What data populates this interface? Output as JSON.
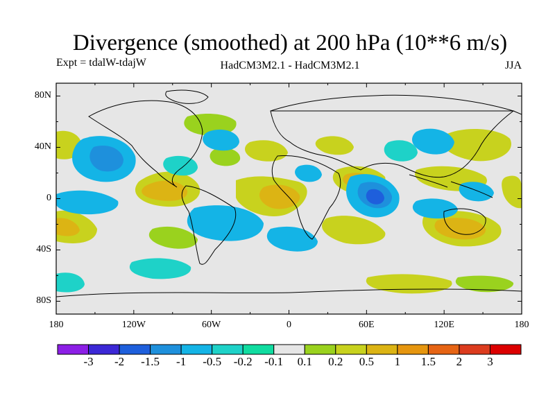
{
  "title": "Divergence (smoothed) at 200 hPa (10**6 m/s)",
  "experiment": "Expt = tdalW-tdajW",
  "models": "HadCM3M2.1 - HadCM3M2.1",
  "season": "JJA",
  "y_axis": {
    "labels": [
      "80N",
      "40N",
      "0",
      "40S",
      "80S"
    ],
    "values": [
      80,
      40,
      0,
      -40,
      -80
    ]
  },
  "x_axis": {
    "labels": [
      "180",
      "120W",
      "60W",
      "0",
      "60E",
      "120E",
      "180"
    ],
    "values": [
      -180,
      -120,
      -60,
      0,
      60,
      120,
      180
    ]
  },
  "colorbar": {
    "colors": [
      "#8c1fe6",
      "#3c28d6",
      "#1e5fdc",
      "#1e90dc",
      "#14b4e6",
      "#1ed2c8",
      "#10dca0",
      "#e6e6e6",
      "#9ad21e",
      "#c8d21e",
      "#dcb414",
      "#e6960f",
      "#e66414",
      "#dc3c1e",
      "#dc0000"
    ],
    "labels": [
      "-3",
      "-2",
      "-1.5",
      "-1",
      "-0.5",
      "-0.2",
      "-0.1",
      "0.1",
      "0.2",
      "0.5",
      "1",
      "1.5",
      "2",
      "3"
    ]
  },
  "map_features": {
    "positive_centers": [
      {
        "lon": -110,
        "lat": 10,
        "level": "1"
      },
      {
        "lon": 0,
        "lat": 0,
        "level": "1"
      },
      {
        "lon": 45,
        "lat": 10,
        "level": "1"
      },
      {
        "lon": 135,
        "lat": -25,
        "level": "1"
      },
      {
        "lon": -175,
        "lat": -22,
        "level": "1"
      },
      {
        "lon": 50,
        "lat": -30,
        "level": "0.5"
      },
      {
        "lon": 140,
        "lat": 35,
        "level": "0.5"
      }
    ],
    "negative_centers": [
      {
        "lon": 70,
        "lat": 0,
        "level": "-2"
      },
      {
        "lon": -145,
        "lat": 30,
        "level": "-0.5"
      },
      {
        "lon": -80,
        "lat": -15,
        "level": "-0.5"
      },
      {
        "lon": 95,
        "lat": 45,
        "level": "-0.5"
      },
      {
        "lon": -35,
        "lat": 40,
        "level": "-0.5"
      },
      {
        "lon": 20,
        "lat": -30,
        "level": "-0.5"
      }
    ]
  }
}
